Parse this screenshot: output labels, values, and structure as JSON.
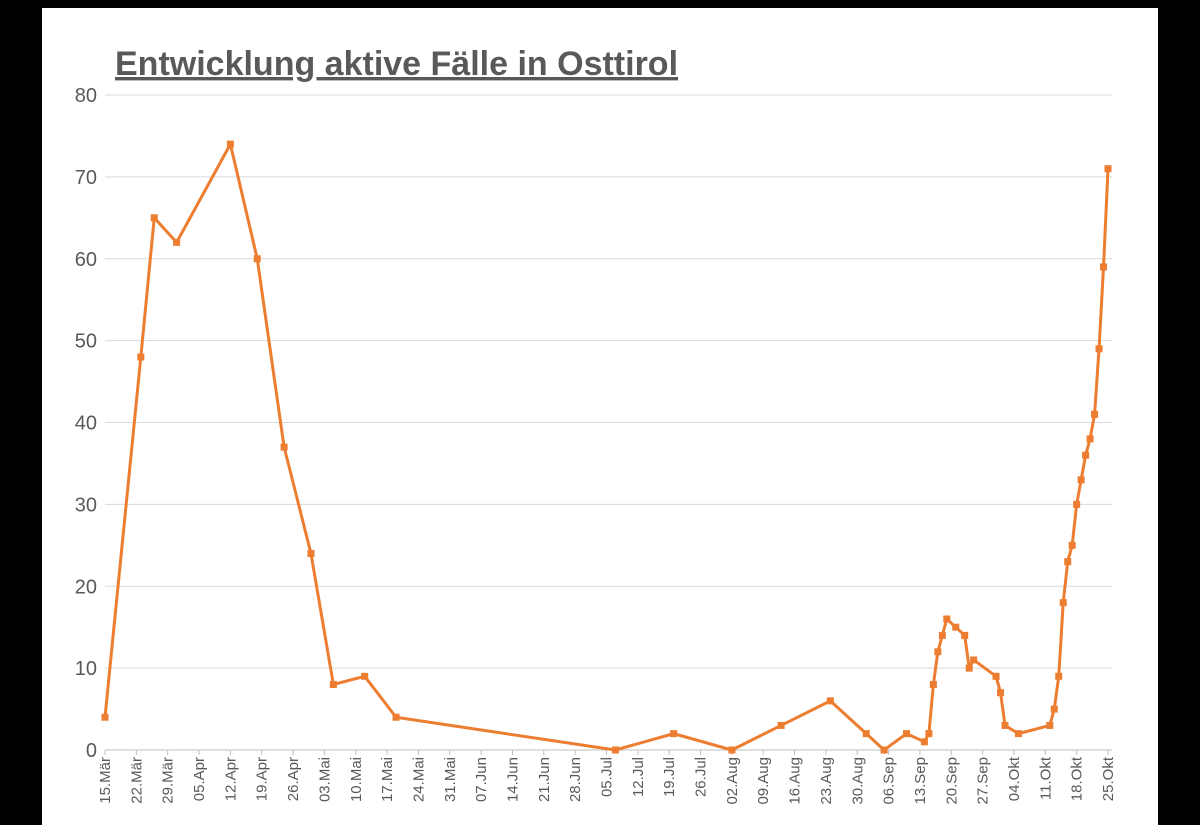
{
  "chart_data": {
    "type": "line",
    "title": "Entwicklung aktive Fälle in Osttirol",
    "x": [
      "15.Mär",
      "23.Mär",
      "26.Mär",
      "31.Mär",
      "12.Apr",
      "18.Apr",
      "24.Apr",
      "30.Apr",
      "05.Mai",
      "12.Mai",
      "19.Mai",
      "07.Jul",
      "20.Jul",
      "02.Aug",
      "13.Aug",
      "24.Aug",
      "01.Sep",
      "05.Sep",
      "10.Sep",
      "14.Sep",
      "15.Sep",
      "16.Sep",
      "17.Sep",
      "18.Sep",
      "19.Sep",
      "21.Sep",
      "23.Sep",
      "24.Sep",
      "25.Sep",
      "30.Sep",
      "01.Okt",
      "02.Okt",
      "05.Okt",
      "12.Okt",
      "13.Okt",
      "14.Okt",
      "15.Okt",
      "16.Okt",
      "17.Okt",
      "18.Okt",
      "19.Okt",
      "20.Okt",
      "21.Okt",
      "22.Okt",
      "23.Okt",
      "24.Okt",
      "25.Okt"
    ],
    "series": [
      {
        "color": "#ED7D31",
        "values": [
          4,
          48,
          65,
          62,
          74,
          60,
          37,
          24,
          8,
          9,
          4,
          0,
          2,
          0,
          3,
          6,
          2,
          0,
          2,
          1,
          2,
          8,
          12,
          14,
          16,
          15,
          14,
          10,
          11,
          9,
          7,
          3,
          2,
          3,
          5,
          9,
          18,
          23,
          25,
          30,
          33,
          36,
          38,
          41,
          49,
          59,
          71
        ]
      }
    ],
    "xlim": [
      "15.Mär",
      "25.Okt"
    ],
    "xticks": [
      "15.Mär",
      "22.Mär",
      "29.Mär",
      "05.Apr",
      "12.Apr",
      "19.Apr",
      "26.Apr",
      "03.Mai",
      "10.Mai",
      "17.Mai",
      "24.Mai",
      "31.Mai",
      "07.Jun",
      "14.Jun",
      "21.Jun",
      "28.Jun",
      "05.Jul",
      "12.Jul",
      "19.Jul",
      "26.Jul",
      "02.Aug",
      "09.Aug",
      "16.Aug",
      "23.Aug",
      "30.Aug",
      "06.Sep",
      "13.Sep",
      "20.Sep",
      "27.Sep",
      "04.Okt",
      "11.Okt",
      "18.Okt",
      "25.Okt"
    ],
    "ylim": [
      0,
      80
    ],
    "yticks": [
      0,
      10,
      20,
      30,
      40,
      50,
      60,
      70,
      80
    ],
    "grid": true
  }
}
